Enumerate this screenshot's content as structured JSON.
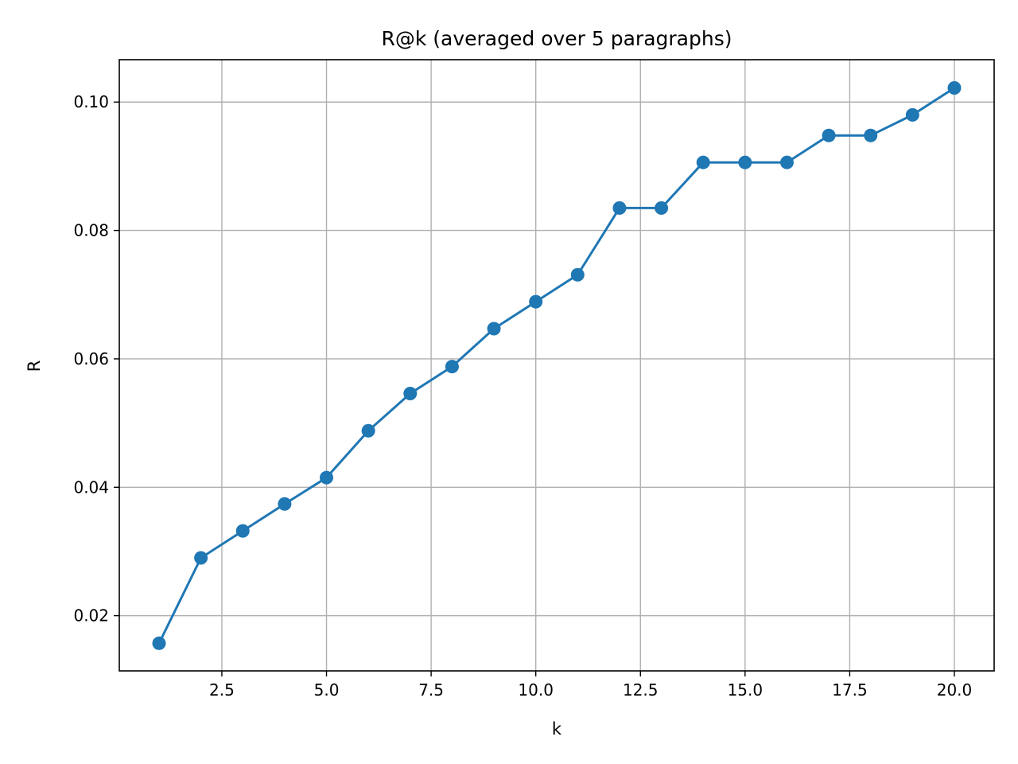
{
  "chart_data": {
    "type": "line",
    "title": "R@k  (averaged over 5 paragraphs)",
    "xlabel": "k",
    "ylabel": "R",
    "xlim": [
      0.05,
      20.95
    ],
    "ylim": [
      0.0114,
      0.1066
    ],
    "x_ticks": [
      2.5,
      5.0,
      7.5,
      10.0,
      12.5,
      15.0,
      17.5,
      20.0
    ],
    "x_tick_labels": [
      "2.5",
      "5.0",
      "7.5",
      "10.0",
      "12.5",
      "15.0",
      "17.5",
      "20.0"
    ],
    "y_ticks": [
      0.02,
      0.04,
      0.06,
      0.08,
      0.1
    ],
    "y_tick_labels": [
      "0.02",
      "0.04",
      "0.06",
      "0.08",
      "0.10"
    ],
    "grid": true,
    "series": [
      {
        "color": "#1f77b4",
        "marker": "circle",
        "x": [
          1,
          2,
          3,
          4,
          5,
          6,
          7,
          8,
          9,
          10,
          11,
          12,
          13,
          14,
          15,
          16,
          17,
          18,
          19,
          20
        ],
        "y": [
          0.0157,
          0.029,
          0.0332,
          0.0374,
          0.0415,
          0.0488,
          0.0546,
          0.0588,
          0.0647,
          0.0689,
          0.0731,
          0.0835,
          0.0835,
          0.0906,
          0.0906,
          0.0906,
          0.0948,
          0.0948,
          0.098,
          0.1022
        ]
      }
    ]
  }
}
